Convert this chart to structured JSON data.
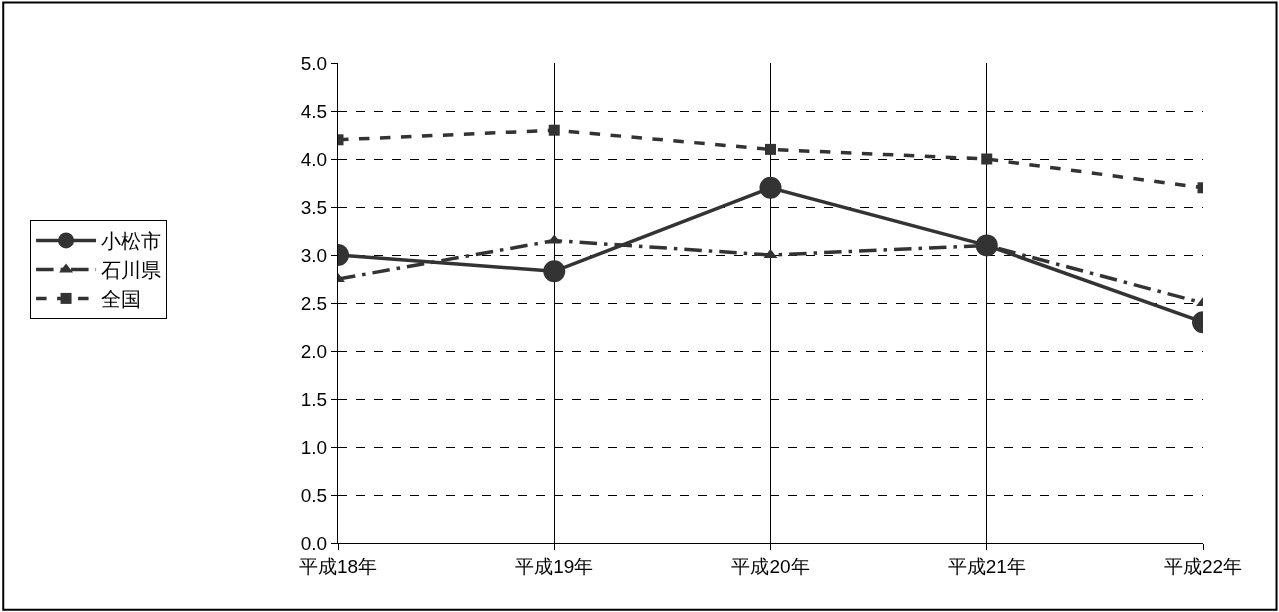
{
  "chart_data": {
    "type": "line",
    "categories": [
      "平成18年",
      "平成19年",
      "平成20年",
      "平成21年",
      "平成22年"
    ],
    "ylim": [
      0,
      5
    ],
    "yticks": [
      {
        "value": 0,
        "label": "0.0"
      },
      {
        "value": 0.5,
        "label": "0.5"
      },
      {
        "value": 1,
        "label": "1.0"
      },
      {
        "value": 1.5,
        "label": "1.5"
      },
      {
        "value": 2,
        "label": "2.0"
      },
      {
        "value": 2.5,
        "label": "2.5"
      },
      {
        "value": 3,
        "label": "3.0"
      },
      {
        "value": 3.5,
        "label": "3.5"
      },
      {
        "value": 4,
        "label": "4.0"
      },
      {
        "value": 4.5,
        "label": "4.5"
      },
      {
        "value": 5,
        "label": "5.0"
      }
    ],
    "grid": true,
    "legend": "left",
    "series": [
      {
        "name": "小松市",
        "color": "#333333",
        "marker": "circle",
        "line_style": "solid",
        "values": [
          3.0,
          2.83,
          3.7,
          3.1,
          2.3
        ]
      },
      {
        "name": "石川県",
        "color": "#333333",
        "marker": "triangle",
        "line_style": "dashed",
        "values": [
          2.75,
          3.15,
          3.0,
          3.1,
          2.5
        ]
      },
      {
        "name": "全国",
        "color": "#333333",
        "marker": "square",
        "line_style": "dotted",
        "values": [
          4.2,
          4.3,
          4.1,
          4.0,
          3.7
        ]
      }
    ]
  }
}
